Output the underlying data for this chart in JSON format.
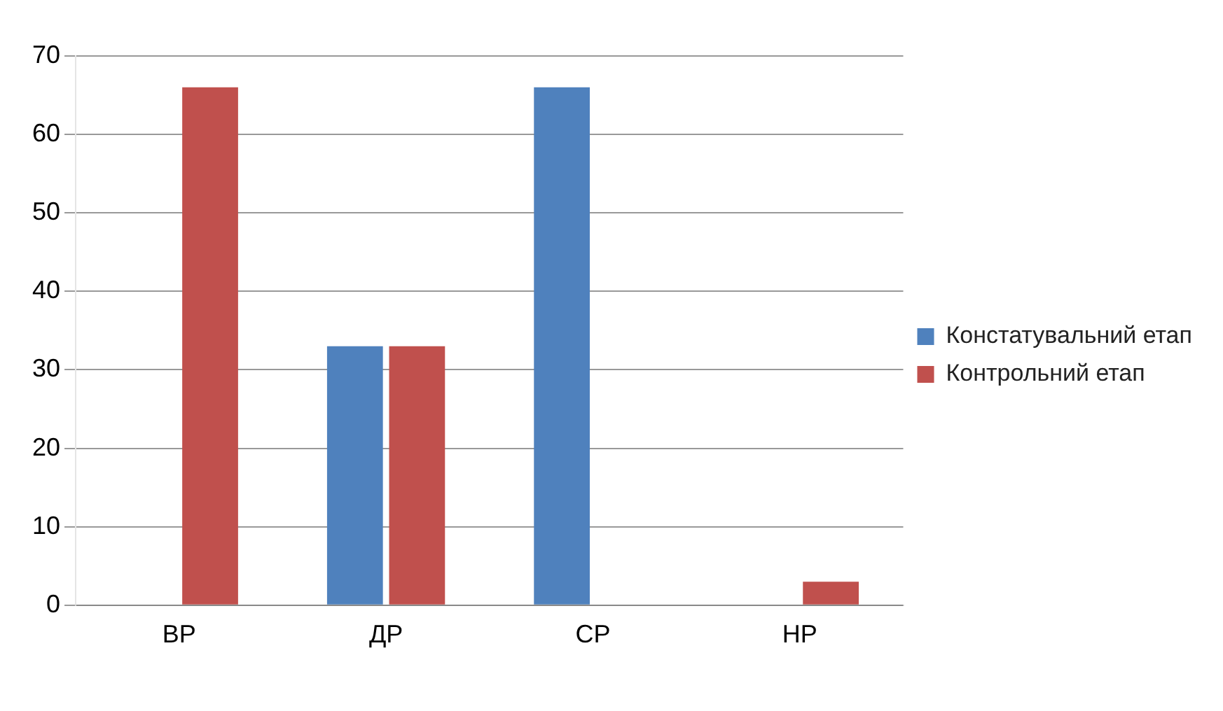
{
  "chart_data": {
    "type": "bar",
    "categories": [
      "ВР",
      "ДР",
      "СР",
      "НР"
    ],
    "series": [
      {
        "name": "Констатувальний етап",
        "color": "#4f81bd",
        "values": [
          0,
          33,
          66,
          0
        ]
      },
      {
        "name": "Контрольний етап",
        "color": "#c0504d",
        "values": [
          66,
          33,
          0,
          3
        ]
      }
    ],
    "ylim": [
      0,
      70
    ],
    "yticks": [
      0,
      10,
      20,
      30,
      40,
      50,
      60,
      70
    ],
    "grid": "y",
    "legend": "right"
  }
}
